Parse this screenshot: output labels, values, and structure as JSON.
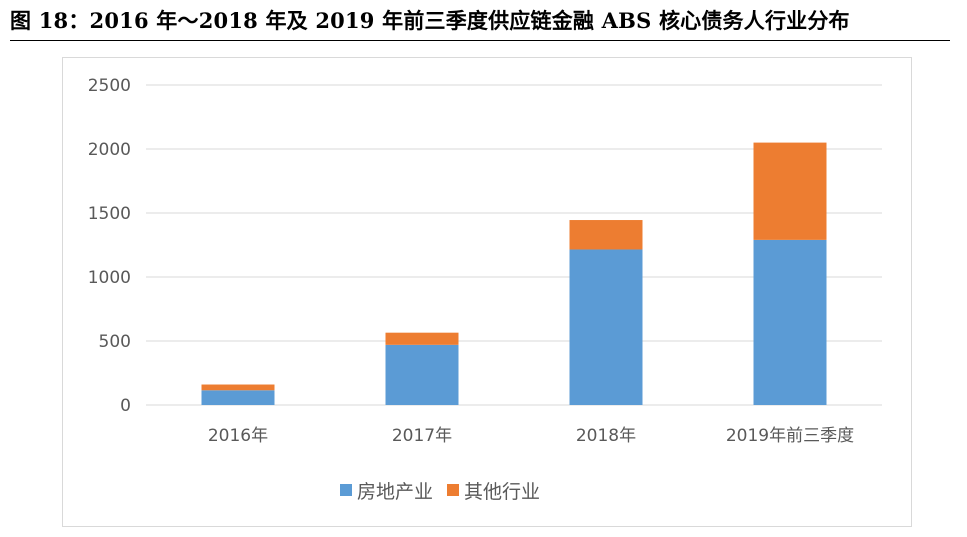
{
  "figure_title": "图 18：2016 年～2018 年及 2019 年前三季度供应链金融 ABS 核心债务人行业分布",
  "colors": {
    "real_estate": "#5B9BD5",
    "other": "#ED7D31",
    "grid": "#d9d9d9",
    "tick_text": "#595959"
  },
  "chart_data": {
    "type": "bar",
    "stacked": true,
    "title": "",
    "xlabel": "",
    "ylabel": "",
    "categories": [
      "2016年",
      "2017年",
      "2018年",
      "2019年前三季度"
    ],
    "series": [
      {
        "name": "房地产业",
        "values": [
          115,
          470,
          1215,
          1290
        ]
      },
      {
        "name": "其他行业",
        "values": [
          45,
          95,
          230,
          760
        ]
      }
    ],
    "ylim": [
      0,
      2500
    ],
    "yticks": [
      0,
      500,
      1000,
      1500,
      2000,
      2500
    ],
    "grid": true,
    "legend_position": "bottom"
  }
}
